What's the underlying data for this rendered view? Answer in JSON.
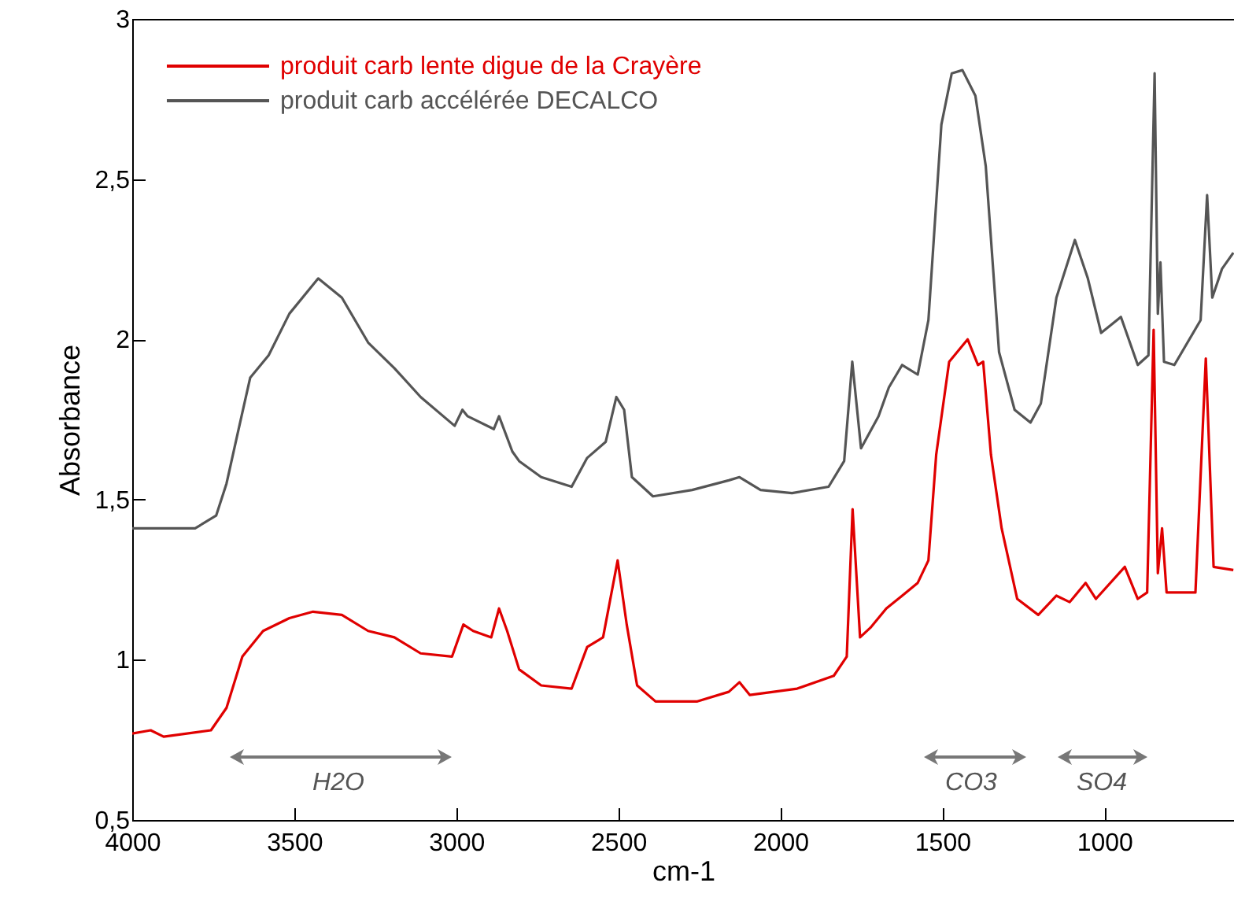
{
  "chart_data": {
    "type": "line",
    "xlabel": "cm-1",
    "ylabel": "Absorbance",
    "xlim": [
      4000,
      600
    ],
    "xticks": [
      4000,
      3500,
      3000,
      2500,
      2000,
      1500,
      1000
    ],
    "ylim": [
      0.5,
      3
    ],
    "yticks": [
      {
        "value": 0.5,
        "label": "0,5"
      },
      {
        "value": 1,
        "label": "1"
      },
      {
        "value": 1.5,
        "label": "1,5"
      },
      {
        "value": 2,
        "label": "2"
      },
      {
        "value": 2.5,
        "label": "2,5"
      },
      {
        "value": 3,
        "label": "3"
      }
    ],
    "legend": "top left",
    "grid": false,
    "series": [
      {
        "name": "produit  carb lente digue de la Crayère",
        "color": "#e00000",
        "x": [
          4000,
          3943,
          3903,
          3757,
          3709,
          3660,
          3596,
          3515,
          3442,
          3353,
          3272,
          3191,
          3110,
          3013,
          2978,
          2948,
          2892,
          2868,
          2843,
          2806,
          2738,
          2644,
          2596,
          2547,
          2502,
          2474,
          2442,
          2385,
          2256,
          2159,
          2126,
          2094,
          1948,
          1835,
          1795,
          1777,
          1754,
          1722,
          1673,
          1624,
          1576,
          1543,
          1519,
          1479,
          1422,
          1390,
          1374,
          1350,
          1317,
          1269,
          1204,
          1148,
          1107,
          1058,
          1026,
          937,
          897,
          868,
          848,
          835,
          822,
          808,
          719,
          687,
          663,
          602
        ],
        "values": [
          0.77,
          0.78,
          0.76,
          0.78,
          0.85,
          1.01,
          1.09,
          1.13,
          1.15,
          1.14,
          1.09,
          1.07,
          1.02,
          1.01,
          1.11,
          1.09,
          1.07,
          1.16,
          1.09,
          0.97,
          0.92,
          0.91,
          1.04,
          1.07,
          1.31,
          1.11,
          0.92,
          0.87,
          0.87,
          0.9,
          0.93,
          0.89,
          0.91,
          0.95,
          1.01,
          1.47,
          1.07,
          1.1,
          1.16,
          1.2,
          1.24,
          1.31,
          1.64,
          1.93,
          2.0,
          1.92,
          1.93,
          1.64,
          1.41,
          1.19,
          1.14,
          1.2,
          1.18,
          1.24,
          1.19,
          1.29,
          1.19,
          1.21,
          2.03,
          1.27,
          1.41,
          1.21,
          1.21,
          1.94,
          1.29,
          1.28
        ]
      },
      {
        "name": "produit carb accélérée DECALCO",
        "color": "#555555",
        "x": [
          4000,
          3806,
          3741,
          3709,
          3676,
          3636,
          3579,
          3515,
          3426,
          3353,
          3272,
          3191,
          3110,
          3005,
          2981,
          2965,
          2884,
          2868,
          2827,
          2806,
          2738,
          2644,
          2596,
          2539,
          2506,
          2482,
          2458,
          2393,
          2272,
          2159,
          2126,
          2061,
          1964,
          1851,
          1803,
          1778,
          1751,
          1697,
          1665,
          1624,
          1576,
          1543,
          1503,
          1471,
          1438,
          1398,
          1366,
          1325,
          1277,
          1228,
          1196,
          1148,
          1091,
          1051,
          1010,
          949,
          897,
          864,
          845,
          835,
          827,
          816,
          784,
          703,
          683,
          667,
          637,
          602
        ],
        "values": [
          1.41,
          1.41,
          1.45,
          1.55,
          1.7,
          1.88,
          1.95,
          2.08,
          2.19,
          2.13,
          1.99,
          1.91,
          1.82,
          1.73,
          1.78,
          1.76,
          1.72,
          1.76,
          1.65,
          1.62,
          1.57,
          1.54,
          1.63,
          1.68,
          1.82,
          1.78,
          1.57,
          1.51,
          1.53,
          1.56,
          1.57,
          1.53,
          1.52,
          1.54,
          1.62,
          1.93,
          1.66,
          1.76,
          1.85,
          1.92,
          1.89,
          2.06,
          2.67,
          2.83,
          2.84,
          2.76,
          2.54,
          1.96,
          1.78,
          1.74,
          1.8,
          2.13,
          2.31,
          2.19,
          2.02,
          2.07,
          1.92,
          1.95,
          2.83,
          2.08,
          2.24,
          1.93,
          1.92,
          2.06,
          2.45,
          2.13,
          2.22,
          2.27
        ]
      }
    ],
    "annotations": [
      "H2O",
      "CO3",
      "SO4"
    ]
  }
}
